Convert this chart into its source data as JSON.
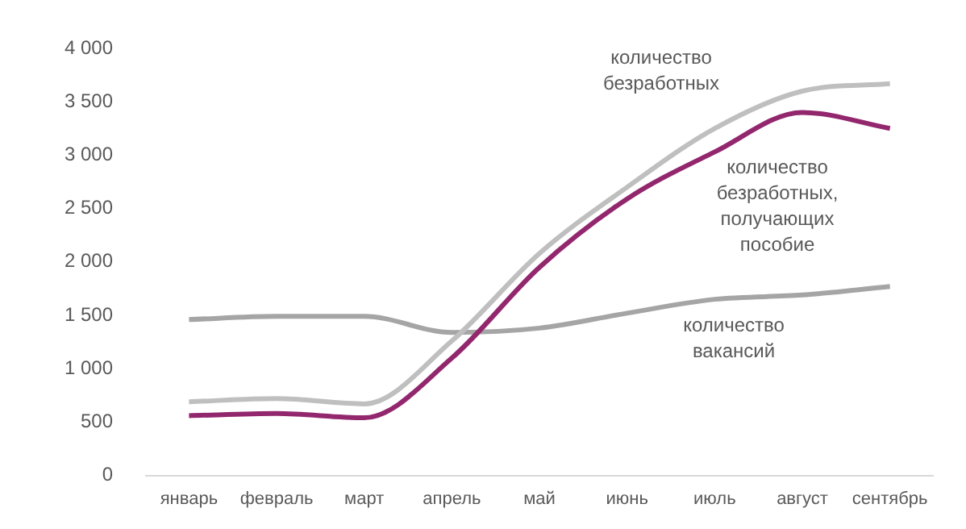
{
  "chart_data": {
    "type": "line",
    "categories": [
      "январь",
      "февраль",
      "март",
      "апрель",
      "май",
      "июнь",
      "июль",
      "август",
      "сентябрь"
    ],
    "series": [
      {
        "name": "количество безработных",
        "color": "#bfbfbf",
        "values": [
          690,
          720,
          670,
          1260,
          2080,
          2700,
          3250,
          3600,
          3670
        ]
      },
      {
        "name": "количество безработных, получающих пособие",
        "color": "#93276e",
        "values": [
          560,
          580,
          540,
          1100,
          1950,
          2590,
          3030,
          3400,
          3250
        ]
      },
      {
        "name": "количество вакансий",
        "color": "#a5a5a5",
        "values": [
          1460,
          1490,
          1490,
          1340,
          1380,
          1520,
          1650,
          1690,
          1770
        ]
      }
    ],
    "ylim": [
      0,
      4000
    ],
    "yticks": [
      0,
      500,
      1000,
      1500,
      2000,
      2500,
      3000,
      3500,
      4000
    ],
    "grid": false,
    "legend": false,
    "marker": "none",
    "line_style": "solid"
  }
}
